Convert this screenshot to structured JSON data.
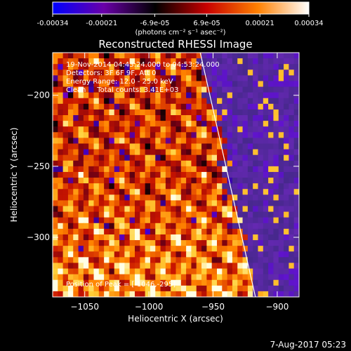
{
  "colorbar": {
    "tick_labels": [
      "-0.00034",
      "-0.00021",
      "-6.9e-05",
      "6.9e-05",
      "0.00021",
      "0.00034"
    ],
    "tick_values": [
      -0.00034,
      -0.00021,
      -6.9e-05,
      6.9e-05,
      0.00021,
      0.00034
    ],
    "range": [
      -0.00034,
      0.00034
    ],
    "units_label": "(photons cm⁻² s⁻¹ asec⁻²)",
    "colormap_stops": [
      "#0000ff",
      "#6a00a8",
      "#000000",
      "#c80000",
      "#ff8000",
      "#ffffff"
    ]
  },
  "chart_data": {
    "type": "heatmap",
    "title": "Reconstructed RHESSI Image",
    "xlabel": "Heliocentric X (arcsec)",
    "ylabel": "Heliocentric Y (arcsec)",
    "xlim": [
      -1075,
      -883
    ],
    "ylim": [
      -342,
      -170
    ],
    "x_ticks": [
      -1050,
      -1000,
      -950,
      -900
    ],
    "x_tick_labels": [
      "−1050",
      "−1000",
      "−950",
      "−900"
    ],
    "y_ticks": [
      -200,
      -250,
      -300
    ],
    "y_tick_labels": [
      "−200",
      "−250",
      "−300"
    ],
    "annotations": [
      "19-Nov-2014 04:43:24.000 to 04:53:24.000",
      "Detectors: 3F 6F 9F, Att 0",
      "Energy Range: 12.0 - 25.0 keV",
      "Clean     Total counts: 3.41E+03"
    ],
    "peak_label": "Position of Peak = [-1046,-295]",
    "peak_position": [
      -1046,
      -295
    ],
    "limb_line": [
      [
        -960,
        -170
      ],
      [
        -917,
        -342
      ]
    ],
    "grid": false,
    "colorbar_location": "top"
  },
  "footer": {
    "timestamp": "7-Aug-2017 05:23"
  }
}
